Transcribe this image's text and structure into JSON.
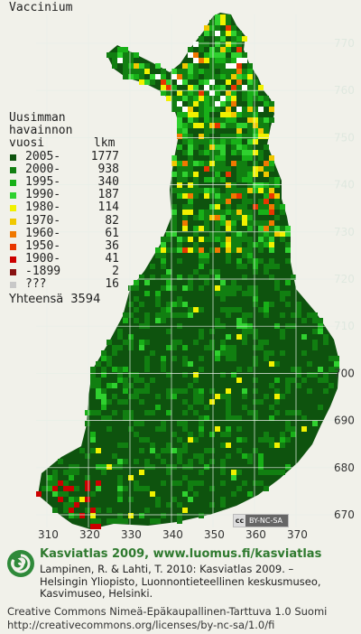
{
  "title": "Vaccinium",
  "legend": {
    "heading": [
      "Uusimman",
      "havainnon",
      "vuosi       lkm"
    ],
    "rows": [
      {
        "label": "2005-",
        "count": "1777",
        "color": "#0e530e"
      },
      {
        "label": "2000-",
        "count": "938",
        "color": "#117f11"
      },
      {
        "label": "1995-",
        "count": "340",
        "color": "#18b018"
      },
      {
        "label": "1990-",
        "count": "187",
        "color": "#2fd12f"
      },
      {
        "label": "1980-",
        "count": "114",
        "color": "#f1f100"
      },
      {
        "label": "1970-",
        "count": "82",
        "color": "#f0c800"
      },
      {
        "label": "1960-",
        "count": "61",
        "color": "#f07800"
      },
      {
        "label": "1950-",
        "count": "36",
        "color": "#e83600"
      },
      {
        "label": "1900-",
        "count": "41",
        "color": "#cc0000"
      },
      {
        "label": "-1899",
        "count": "2",
        "color": "#881111"
      },
      {
        "label": "???",
        "count": "16",
        "color": "#c8c8c8"
      }
    ],
    "total_label": "Yhteensä",
    "total_value": "3594"
  },
  "axes": {
    "y_ticks": [
      "770",
      "760",
      "750",
      "740",
      "730",
      "720",
      "710",
      "700",
      "690",
      "680",
      "670"
    ],
    "x_ticks": [
      "310",
      "320",
      "330",
      "340",
      "350",
      "360",
      "370"
    ]
  },
  "cc_badge": "BY-NC-SA",
  "footer": {
    "brand": "Kasviatlas 2009, www.luomus.fi/kasviatlas",
    "citation": [
      "Lampinen, R. & Lahti, T. 2010: Kasviatlas 2009. –",
      "Helsingin Yliopisto, Luonnontieteellinen keskusmuseo,",
      "Kasvimuseo, Helsinki."
    ],
    "license": [
      "Creative Commons Nimeä-Epäkaupallinen-Tarttuva 1.0 Suomi",
      "http://creativecommons.org/licenses/by-nc-sa/1.0/fi"
    ]
  },
  "colors": {
    "background": "#f1f1ea",
    "grid": "#e8efe8",
    "land_dark": "#0e530e",
    "land_mid": "#117f11",
    "brand_green": "#2f7a2f"
  }
}
